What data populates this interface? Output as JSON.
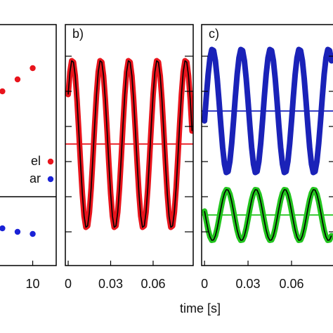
{
  "xlabel": "time [s]",
  "chart_data": [
    {
      "type": "scatter",
      "x": [
        6,
        8,
        10
      ],
      "xlim": [
        5.5,
        13.1
      ],
      "xticks": [
        10
      ],
      "ylim": [
        -0.96,
        5.9
      ],
      "legend": "right",
      "series": [
        {
          "name": "el",
          "color": "#e8141c",
          "values": [
            4.0,
            4.34,
            4.66
          ]
        },
        {
          "name": "ar",
          "color": "#1a22d6",
          "values": [
            0.1,
            0,
            -0.06
          ]
        }
      ]
    },
    {
      "type": "line",
      "title": "b)",
      "xlim": [
        -0.002,
        0.0883
      ],
      "xticks": [
        0,
        0.03,
        0.06
      ],
      "ylim": [
        -0.96,
        5.9
      ],
      "yticks": [
        0,
        1,
        2,
        3,
        4,
        5
      ],
      "x": [
        0,
        0.00125,
        0.0025,
        0.00375,
        0.005,
        0.00625,
        0.0075,
        0.00875,
        0.01,
        0.01125,
        0.0125,
        0.01375,
        0.015,
        0.01625,
        0.0175,
        0.01875,
        0.02,
        0.02125,
        0.0225,
        0.02375,
        0.025,
        0.02625,
        0.0275,
        0.02875,
        0.03,
        0.03125,
        0.0325,
        0.03375,
        0.035,
        0.03625,
        0.0375,
        0.03875,
        0.04,
        0.04125,
        0.0425,
        0.04375,
        0.045,
        0.04625,
        0.0475,
        0.04875,
        0.05,
        0.05125,
        0.0525,
        0.05375,
        0.055,
        0.05625,
        0.0575,
        0.05875,
        0.06,
        0.06125,
        0.0625,
        0.06375,
        0.065,
        0.06625,
        0.0675,
        0.06875,
        0.07,
        0.07125,
        0.0725,
        0.07375,
        0.075,
        0.07625,
        0.0775,
        0.07875,
        0.08,
        0.08125,
        0.0825,
        0.08375,
        0.085,
        0.08625,
        0.0875
      ],
      "series": [
        {
          "color": "#e8141c",
          "fit_color": "#000000",
          "mean": 2.5,
          "values": [
            3.91,
            4.55,
            4.87,
            4.83,
            4.44,
            3.75,
            2.87,
            1.94,
            1.09,
            0.45,
            0.13,
            0.17,
            0.56,
            1.25,
            2.13,
            3.06,
            3.91,
            4.55,
            4.87,
            4.83,
            4.44,
            3.75,
            2.87,
            1.94,
            1.09,
            0.45,
            0.13,
            0.17,
            0.56,
            1.25,
            2.13,
            3.06,
            3.91,
            4.55,
            4.87,
            4.83,
            4.44,
            3.75,
            2.87,
            1.94,
            1.09,
            0.45,
            0.13,
            0.17,
            0.56,
            1.25,
            2.13,
            3.06,
            3.91,
            4.55,
            4.87,
            4.83,
            4.44,
            3.75,
            2.87,
            1.94,
            1.09,
            0.45,
            0.13,
            0.17,
            0.56,
            1.25,
            2.13,
            3.06,
            3.91,
            4.55,
            4.87,
            4.83,
            4.44,
            3.75,
            2.87
          ]
        }
      ]
    },
    {
      "type": "line",
      "title": "c)",
      "xlim": [
        -0.002,
        0.0915
      ],
      "xticks": [
        0,
        0.03,
        0.06
      ],
      "ylim": [
        -0.96,
        5.9
      ],
      "yticks": [
        0,
        1,
        2,
        3,
        4,
        5
      ],
      "x": [
        0,
        0.00125,
        0.0025,
        0.00375,
        0.005,
        0.00625,
        0.0075,
        0.00875,
        0.01,
        0.01125,
        0.0125,
        0.01375,
        0.015,
        0.01625,
        0.0175,
        0.01875,
        0.02,
        0.02125,
        0.0225,
        0.02375,
        0.025,
        0.02625,
        0.0275,
        0.02875,
        0.03,
        0.03125,
        0.0325,
        0.03375,
        0.035,
        0.03625,
        0.0375,
        0.03875,
        0.04,
        0.04125,
        0.0425,
        0.04375,
        0.045,
        0.04625,
        0.0475,
        0.04875,
        0.05,
        0.05125,
        0.0525,
        0.05375,
        0.055,
        0.05625,
        0.0575,
        0.05875,
        0.06,
        0.06125,
        0.0625,
        0.06375,
        0.065,
        0.06625,
        0.0675,
        0.06875,
        0.07,
        0.07125,
        0.0725,
        0.07375,
        0.075,
        0.07625,
        0.0775,
        0.07875,
        0.08,
        0.08125,
        0.0825,
        0.08375,
        0.085,
        0.08625,
        0.0875
      ],
      "series": [
        {
          "color": "#1a22b8",
          "mean": 3.44,
          "values": [
            3.16,
            3.85,
            4.48,
            4.95,
            5.19,
            5.16,
            4.87,
            4.36,
            3.72,
            3.03,
            2.4,
            1.93,
            1.69,
            1.72,
            2.01,
            2.52,
            3.16,
            3.85,
            4.48,
            4.95,
            5.19,
            5.16,
            4.87,
            4.36,
            3.72,
            3.03,
            2.4,
            1.93,
            1.69,
            1.72,
            2.01,
            2.52,
            3.16,
            3.85,
            4.48,
            4.95,
            5.19,
            5.16,
            4.87,
            4.36,
            3.72,
            3.03,
            2.4,
            1.93,
            1.69,
            1.72,
            2.01,
            2.52,
            3.16,
            3.85,
            4.48,
            4.95,
            5.19,
            5.16,
            4.87,
            4.36,
            3.72,
            3.03,
            2.4,
            1.93,
            1.69,
            1.72,
            2.01,
            2.52,
            3.16,
            3.85,
            4.48,
            4.95,
            5.19,
            5.16,
            4.87
          ]
        },
        {
          "color": "#22c41e",
          "fit_color": "#000000",
          "mean": 0.48,
          "values": [
            0.59,
            0.31,
            0.05,
            -0.14,
            -0.24,
            -0.23,
            -0.11,
            0.1,
            0.37,
            0.65,
            0.91,
            1.1,
            1.2,
            1.19,
            1.07,
            0.86,
            0.59,
            0.31,
            0.05,
            -0.14,
            -0.24,
            -0.23,
            -0.11,
            0.1,
            0.37,
            0.65,
            0.91,
            1.1,
            1.2,
            1.19,
            1.07,
            0.86,
            0.59,
            0.31,
            0.05,
            -0.14,
            -0.24,
            -0.23,
            -0.11,
            0.1,
            0.37,
            0.65,
            0.91,
            1.1,
            1.2,
            1.19,
            1.07,
            0.86,
            0.59,
            0.31,
            0.05,
            -0.14,
            -0.24,
            -0.23,
            -0.11,
            0.1,
            0.37,
            0.65,
            0.91,
            1.1,
            1.2,
            1.19,
            1.07,
            0.86,
            0.59,
            0.31,
            0.05,
            -0.14,
            -0.24,
            -0.23,
            -0.11
          ]
        }
      ]
    }
  ]
}
